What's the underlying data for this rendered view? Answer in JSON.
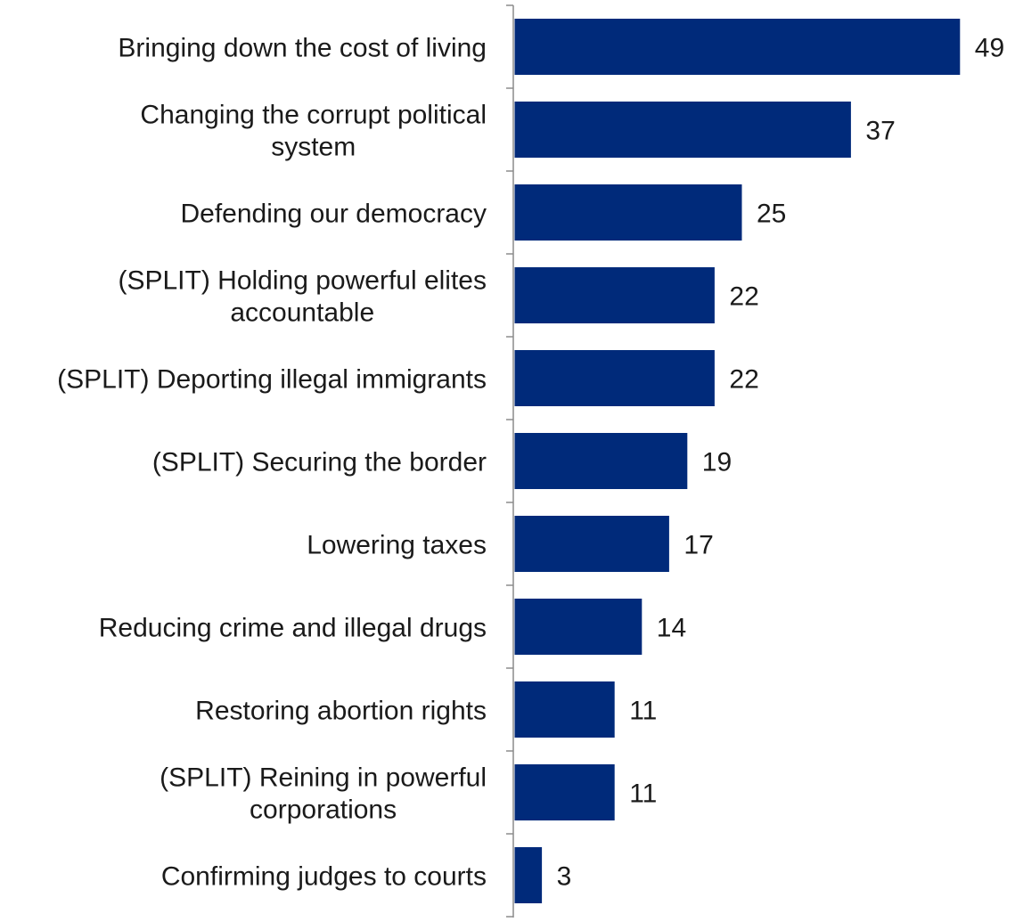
{
  "colors": {
    "bar": "#002A7A",
    "axis": "#8C8C8C",
    "text": "#1A1A1A"
  },
  "chart_data": {
    "type": "bar",
    "orientation": "horizontal",
    "categories": [
      "Bringing down the cost of living",
      "Changing the corrupt political system",
      "Defending our democracy",
      "(SPLIT) Holding powerful elites accountable",
      "(SPLIT) Deporting illegal immigrants",
      "(SPLIT) Securing the border",
      "Lowering taxes",
      "Reducing crime and illegal drugs",
      "Restoring abortion rights",
      "(SPLIT) Reining in powerful corporations",
      "Confirming judges to courts"
    ],
    "category_lines": [
      [
        "Bringing down the cost of living"
      ],
      [
        "Changing the corrupt political",
        "system"
      ],
      [
        "Defending our democracy"
      ],
      [
        "(SPLIT) Holding powerful elites",
        "accountable"
      ],
      [
        "(SPLIT) Deporting illegal immigrants"
      ],
      [
        "(SPLIT) Securing the border"
      ],
      [
        "Lowering taxes"
      ],
      [
        "Reducing crime and illegal drugs"
      ],
      [
        "Restoring abortion rights"
      ],
      [
        "(SPLIT) Reining in powerful",
        "corporations"
      ],
      [
        "Confirming judges to courts"
      ]
    ],
    "values": [
      49,
      37,
      25,
      22,
      22,
      19,
      17,
      14,
      11,
      11,
      3
    ],
    "data_labels": [
      "49",
      "37",
      "25",
      "22",
      "22",
      "19",
      "17",
      "14",
      "11",
      "11",
      "3"
    ],
    "title": "",
    "xlabel": "",
    "ylabel": "",
    "xlim": [
      0,
      50
    ],
    "grid": false,
    "legend": "none"
  }
}
